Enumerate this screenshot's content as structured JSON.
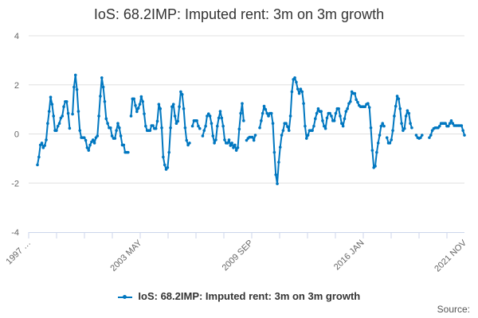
{
  "chart_data": {
    "type": "line",
    "title": "IoS: 68.2IMP: Imputed rent: 3m on 3m growth",
    "xlabel": "",
    "ylabel": "",
    "x_start": "1997-01",
    "x_frequency": "monthly",
    "x_tick_labels": [
      "1997 …",
      "2003 MAY",
      "2009 SEP",
      "2016 JAN",
      "2021 NOV"
    ],
    "x_tick_dates": [
      "1997-01",
      "2003-05",
      "2009-09",
      "2016-01",
      "2021-11"
    ],
    "ylim": [
      -4,
      4
    ],
    "y_ticks": [
      4,
      2,
      0,
      -2,
      -4
    ],
    "grid": true,
    "legend_position": "bottom",
    "series": [
      {
        "name": "IoS: 68.2IMP: Imputed rent: 3m on 3m growth",
        "color": "#0077c0",
        "values": [
          null,
          null,
          null,
          null,
          null,
          null,
          -1.26,
          -0.94,
          -0.45,
          -0.37,
          -0.56,
          -0.47,
          -0.24,
          0.43,
          0.92,
          1.5,
          1.21,
          0.73,
          0.14,
          0.14,
          0.32,
          0.43,
          0.65,
          0.73,
          1.11,
          1.32,
          1.32,
          0.84,
          0.23,
          null,
          0.81,
          1.91,
          2.4,
          1.81,
          0.92,
          0.14,
          -0.15,
          -0.15,
          -0.15,
          -0.26,
          -0.56,
          -0.67,
          -0.45,
          -0.32,
          -0.24,
          -0.37,
          -0.15,
          -0.08,
          0.73,
          1.54,
          2.29,
          1.91,
          1.32,
          0.62,
          0.43,
          0.25,
          0.25,
          -0.08,
          -0.18,
          -0.18,
          0.14,
          0.43,
          0.25,
          -0.08,
          -0.45,
          -0.45,
          -0.75,
          -0.75,
          -0.75,
          null,
          0.73,
          1.43,
          1.43,
          1.16,
          0.91,
          1.05,
          1.21,
          1.52,
          1.32,
          0.82,
          0.32,
          0.14,
          0.14,
          0.14,
          0.34,
          0.34,
          0.22,
          0.22,
          0.52,
          1.21,
          1.03,
          0.25,
          -0.94,
          -1.26,
          -1.44,
          -1.37,
          -0.75,
          0.25,
          1.11,
          1.21,
          0.73,
          0.43,
          0.52,
          1.11,
          1.72,
          1.61,
          1.03,
          0.25,
          -0.26,
          -0.45,
          -0.37,
          null,
          0.32,
          0.54,
          0.54,
          0.54,
          0.32,
          0.22,
          null,
          -0.08,
          0.14,
          0.32,
          0.73,
          0.82,
          0.73,
          0.43,
          -0.08,
          -0.37,
          -0.24,
          0.32,
          0.65,
          0.92,
          0.65,
          0.32,
          -0.24,
          -0.37,
          -0.37,
          -0.24,
          -0.47,
          -0.37,
          -0.56,
          -0.45,
          -0.67,
          -0.56,
          0.2,
          0.84,
          1.24,
          0.54,
          null,
          -0.26,
          -0.18,
          -0.13,
          -0.13,
          -0.13,
          -0.26,
          -0.05,
          null,
          null,
          0.25,
          0.54,
          0.84,
          1.13,
          1.0,
          0.84,
          0.73,
          0.84,
          0.84,
          0.43,
          -0.75,
          -1.66,
          -2.03,
          -1.15,
          -0.54,
          -0.05,
          0.14,
          0.43,
          0.43,
          0.3,
          0.14,
          0.73,
          1.72,
          2.22,
          2.29,
          2.11,
          1.83,
          1.65,
          1.83,
          1.72,
          1.24,
          0.32,
          -0.18,
          -0.05,
          0.14,
          0.14,
          0.14,
          0.32,
          0.62,
          0.84,
          1.03,
          0.92,
          0.92,
          0.54,
          0.32,
          0.22,
          0.65,
          0.84,
          0.84,
          0.73,
          0.54,
          0.54,
          0.84,
          1.03,
          1.03,
          0.73,
          0.43,
          0.32,
          0.62,
          0.92,
          1.03,
          1.24,
          1.32,
          1.72,
          1.65,
          1.65,
          1.4,
          1.29,
          1.16,
          1.11,
          1.11,
          1.11,
          1.11,
          1.21,
          1.24,
          1.08,
          0.25,
          -0.67,
          -1.37,
          -1.31,
          -0.75,
          -0.37,
          -0.05,
          0.32,
          0.43,
          0.32,
          null,
          -0.15,
          -0.37,
          -0.37,
          -0.24,
          0.14,
          0.73,
          1.13,
          1.54,
          1.43,
          1.03,
          0.43,
          0.14,
          0.22,
          0.73,
          0.95,
          0.84,
          0.43,
          0.25,
          null,
          null,
          -0.05,
          -0.15,
          -0.18,
          -0.15,
          -0.05,
          null,
          null,
          null,
          null,
          -0.15,
          -0.05,
          0.14,
          0.22,
          0.25,
          0.25,
          0.25,
          0.32,
          0.43,
          0.43,
          0.43,
          0.43,
          0.32,
          0.32,
          0.43,
          0.54,
          0.43,
          0.34,
          0.34,
          0.34,
          0.34,
          0.34,
          0.34,
          0.14,
          -0.05
        ]
      }
    ]
  },
  "footer": {
    "source_label": "Source:"
  }
}
